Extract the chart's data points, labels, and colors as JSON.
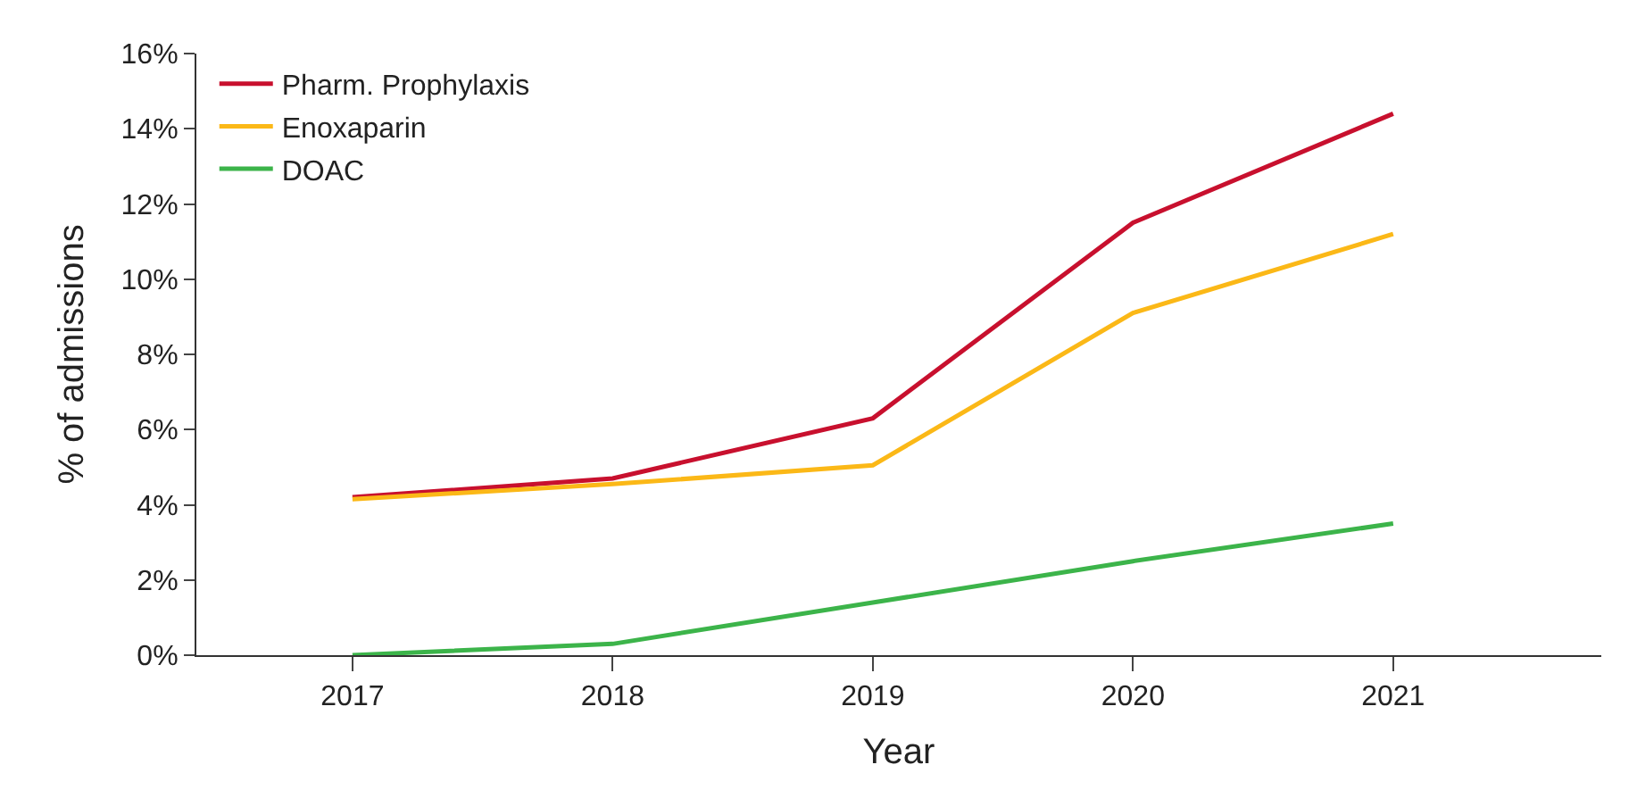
{
  "chart_data": {
    "type": "line",
    "xlabel": "Year",
    "ylabel": "% of admissions",
    "categories": [
      "2017",
      "2018",
      "2019",
      "2020",
      "2021"
    ],
    "series": [
      {
        "name": "Pharm. Prophylaxis",
        "color": "#c8102e",
        "values": [
          4.2,
          4.7,
          6.3,
          11.5,
          14.4
        ]
      },
      {
        "name": "Enoxaparin",
        "color": "#fbb817",
        "values": [
          4.15,
          4.55,
          5.05,
          9.1,
          11.2
        ]
      },
      {
        "name": "DOAC",
        "color": "#3cb44a",
        "values": [
          0,
          0.3,
          1.4,
          2.5,
          3.5
        ]
      }
    ],
    "ylim": [
      0,
      16
    ],
    "yticks": [
      {
        "value": 0,
        "label": "0%"
      },
      {
        "value": 2,
        "label": "2%"
      },
      {
        "value": 4,
        "label": "4%"
      },
      {
        "value": 6,
        "label": "6%"
      },
      {
        "value": 8,
        "label": "8%"
      },
      {
        "value": 10,
        "label": "10%"
      },
      {
        "value": 12,
        "label": "12%"
      },
      {
        "value": 14,
        "label": "14%"
      },
      {
        "value": 16,
        "label": "16%"
      }
    ],
    "legend": "top left",
    "marker": "none",
    "line_style": "solid"
  }
}
